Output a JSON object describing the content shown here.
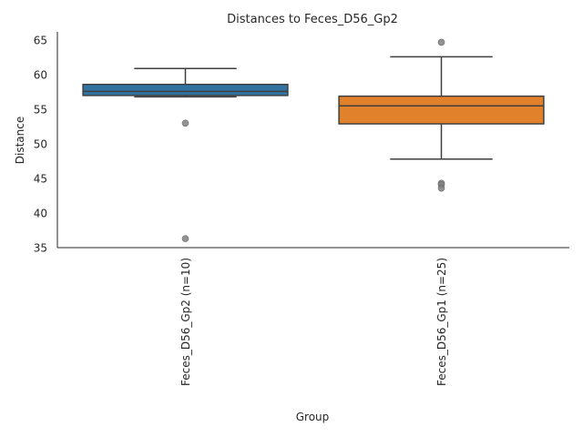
{
  "chart_data": {
    "type": "box",
    "title": "Distances to Feces_D56_Gp2",
    "xlabel": "Group",
    "ylabel": "Distance",
    "ylim": [
      35,
      66.2
    ],
    "yticks": [
      35,
      40,
      45,
      50,
      55,
      60,
      65
    ],
    "grid": false,
    "legend": "none",
    "categories": [
      "Feces_D56_Gp2 (n=10)",
      "Feces_D56_Gp1 (n=25)"
    ],
    "boxes": [
      {
        "category": "Feces_D56_Gp2 (n=10)",
        "color": "#3274a1",
        "whisker_low": 56.8,
        "q1": 57.0,
        "median": 57.6,
        "q3": 58.6,
        "whisker_high": 60.9,
        "outliers": [
          53.0,
          36.3
        ]
      },
      {
        "category": "Feces_D56_Gp1 (n=25)",
        "color": "#e1812c",
        "whisker_low": 47.8,
        "q1": 52.9,
        "median": 55.5,
        "q3": 56.9,
        "whisker_high": 62.6,
        "outliers": [
          64.7,
          44.3,
          44.1,
          43.6
        ]
      }
    ]
  }
}
